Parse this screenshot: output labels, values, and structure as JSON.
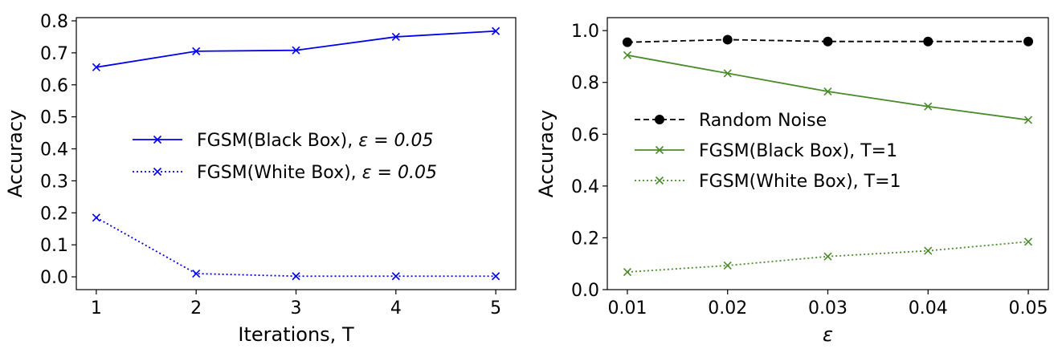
{
  "chart_data": [
    {
      "type": "line",
      "title": "",
      "xlabel": "Iterations, T",
      "ylabel": "Accuracy",
      "x": [
        1,
        2,
        3,
        4,
        5
      ],
      "xlim": [
        0.8,
        5.2
      ],
      "ylim": [
        -0.04,
        0.81
      ],
      "xticks": [
        "1",
        "2",
        "3",
        "4",
        "5"
      ],
      "yticks": [
        "0.0",
        "0.1",
        "0.2",
        "0.3",
        "0.4",
        "0.5",
        "0.6",
        "0.7",
        "0.8"
      ],
      "grid": false,
      "legend_position": "center-right",
      "series": [
        {
          "name": "FGSM(Black Box), ",
          "name_math": "ε = 0.05",
          "values": [
            0.655,
            0.705,
            0.708,
            0.75,
            0.768
          ],
          "color": "#0000ee",
          "style": "solid",
          "marker": "x"
        },
        {
          "name": "FGSM(White Box), ",
          "name_math": "ε = 0.05",
          "values": [
            0.185,
            0.01,
            0.002,
            0.002,
            0.002
          ],
          "color": "#0000ee",
          "style": "dotted",
          "marker": "x"
        }
      ]
    },
    {
      "type": "line",
      "title": "",
      "xlabel": "ε",
      "ylabel": "Accuracy",
      "x": [
        0.01,
        0.02,
        0.03,
        0.04,
        0.05
      ],
      "xlim": [
        0.008,
        0.052
      ],
      "ylim": [
        0.0,
        1.05
      ],
      "xticks": [
        "0.01",
        "0.02",
        "0.03",
        "0.04",
        "0.05"
      ],
      "yticks": [
        "0.0",
        "0.2",
        "0.4",
        "0.6",
        "0.8",
        "1.0"
      ],
      "grid": false,
      "legend_position": "center-right",
      "series": [
        {
          "name": "Random Noise",
          "values": [
            0.955,
            0.965,
            0.958,
            0.958,
            0.958
          ],
          "color": "#000000",
          "style": "dashed",
          "marker": "o"
        },
        {
          "name": "FGSM(Black Box), T=1",
          "values": [
            0.905,
            0.835,
            0.765,
            0.707,
            0.655
          ],
          "color": "#4a8b2c",
          "style": "solid",
          "marker": "x"
        },
        {
          "name": "FGSM(White Box), T=1",
          "values": [
            0.068,
            0.093,
            0.128,
            0.15,
            0.185
          ],
          "color": "#4a8b2c",
          "style": "dotted",
          "marker": "x"
        }
      ]
    }
  ]
}
